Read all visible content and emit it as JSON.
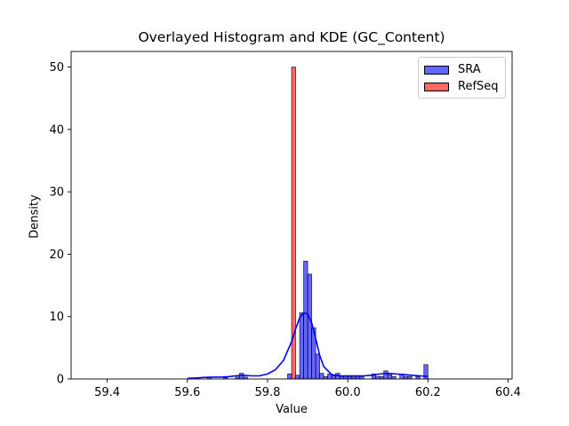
{
  "chart_data": {
    "type": "histogram",
    "title": "Overlayed Histogram and KDE (GC_Content)",
    "xlabel": "Value",
    "ylabel": "Density",
    "xlim": [
      59.31,
      60.41
    ],
    "ylim": [
      0,
      52.5
    ],
    "x_ticks": [
      59.4,
      59.6,
      59.8,
      60.0,
      60.2,
      60.4
    ],
    "x_tick_labels": [
      "59.4",
      "59.6",
      "59.8",
      "60.0",
      "60.2",
      "60.4"
    ],
    "y_ticks": [
      0,
      10,
      20,
      30,
      40,
      50
    ],
    "y_tick_labels": [
      "0",
      "10",
      "20",
      "30",
      "40",
      "50"
    ],
    "grid": false,
    "legend_position": "top-right",
    "series": [
      {
        "name": "SRA",
        "color": "#0000ff",
        "bin_width": 0.01,
        "bins": [
          {
            "x": 59.655,
            "y": 0.3
          },
          {
            "x": 59.695,
            "y": 0.2
          },
          {
            "x": 59.725,
            "y": 0.3
          },
          {
            "x": 59.735,
            "y": 0.9
          },
          {
            "x": 59.745,
            "y": 0.3
          },
          {
            "x": 59.855,
            "y": 0.8
          },
          {
            "x": 59.875,
            "y": 0.6
          },
          {
            "x": 59.885,
            "y": 10.6
          },
          {
            "x": 59.895,
            "y": 18.9
          },
          {
            "x": 59.905,
            "y": 16.8
          },
          {
            "x": 59.915,
            "y": 8.2
          },
          {
            "x": 59.925,
            "y": 4.0
          },
          {
            "x": 59.935,
            "y": 0.9
          },
          {
            "x": 59.945,
            "y": 0.4
          },
          {
            "x": 59.955,
            "y": 0.8
          },
          {
            "x": 59.965,
            "y": 0.5
          },
          {
            "x": 59.975,
            "y": 0.9
          },
          {
            "x": 59.985,
            "y": 0.4
          },
          {
            "x": 59.995,
            "y": 0.3
          },
          {
            "x": 60.005,
            "y": 0.4
          },
          {
            "x": 60.015,
            "y": 0.3
          },
          {
            "x": 60.025,
            "y": 0.4
          },
          {
            "x": 60.035,
            "y": 0.4
          },
          {
            "x": 60.065,
            "y": 0.8
          },
          {
            "x": 60.075,
            "y": 0.4
          },
          {
            "x": 60.085,
            "y": 0.4
          },
          {
            "x": 60.095,
            "y": 1.3
          },
          {
            "x": 60.105,
            "y": 0.7
          },
          {
            "x": 60.115,
            "y": 0.4
          },
          {
            "x": 60.135,
            "y": 0.8
          },
          {
            "x": 60.145,
            "y": 0.4
          },
          {
            "x": 60.155,
            "y": 0.4
          },
          {
            "x": 60.175,
            "y": 0.4
          },
          {
            "x": 60.195,
            "y": 2.3
          }
        ],
        "kde": {
          "x": [
            59.6,
            59.62,
            59.64,
            59.66,
            59.68,
            59.7,
            59.72,
            59.74,
            59.76,
            59.78,
            59.8,
            59.82,
            59.84,
            59.86,
            59.87,
            59.88,
            59.89,
            59.9,
            59.91,
            59.92,
            59.93,
            59.94,
            59.96,
            59.98,
            60.0,
            60.02,
            60.04,
            60.06,
            60.08,
            60.1,
            60.12,
            60.14,
            60.16,
            60.18,
            60.2
          ],
          "y": [
            0.1,
            0.15,
            0.25,
            0.3,
            0.3,
            0.35,
            0.5,
            0.6,
            0.5,
            0.5,
            0.8,
            1.5,
            3.0,
            6.0,
            8.0,
            9.8,
            10.6,
            10.4,
            9.0,
            6.5,
            3.8,
            2.0,
            0.7,
            0.5,
            0.5,
            0.5,
            0.5,
            0.6,
            0.8,
            0.9,
            0.8,
            0.7,
            0.6,
            0.5,
            0.4
          ]
        }
      },
      {
        "name": "RefSeq",
        "color": "#ff0000",
        "bin_width": 0.01,
        "bins": [
          {
            "x": 59.865,
            "y": 50.0
          }
        ]
      }
    ]
  }
}
